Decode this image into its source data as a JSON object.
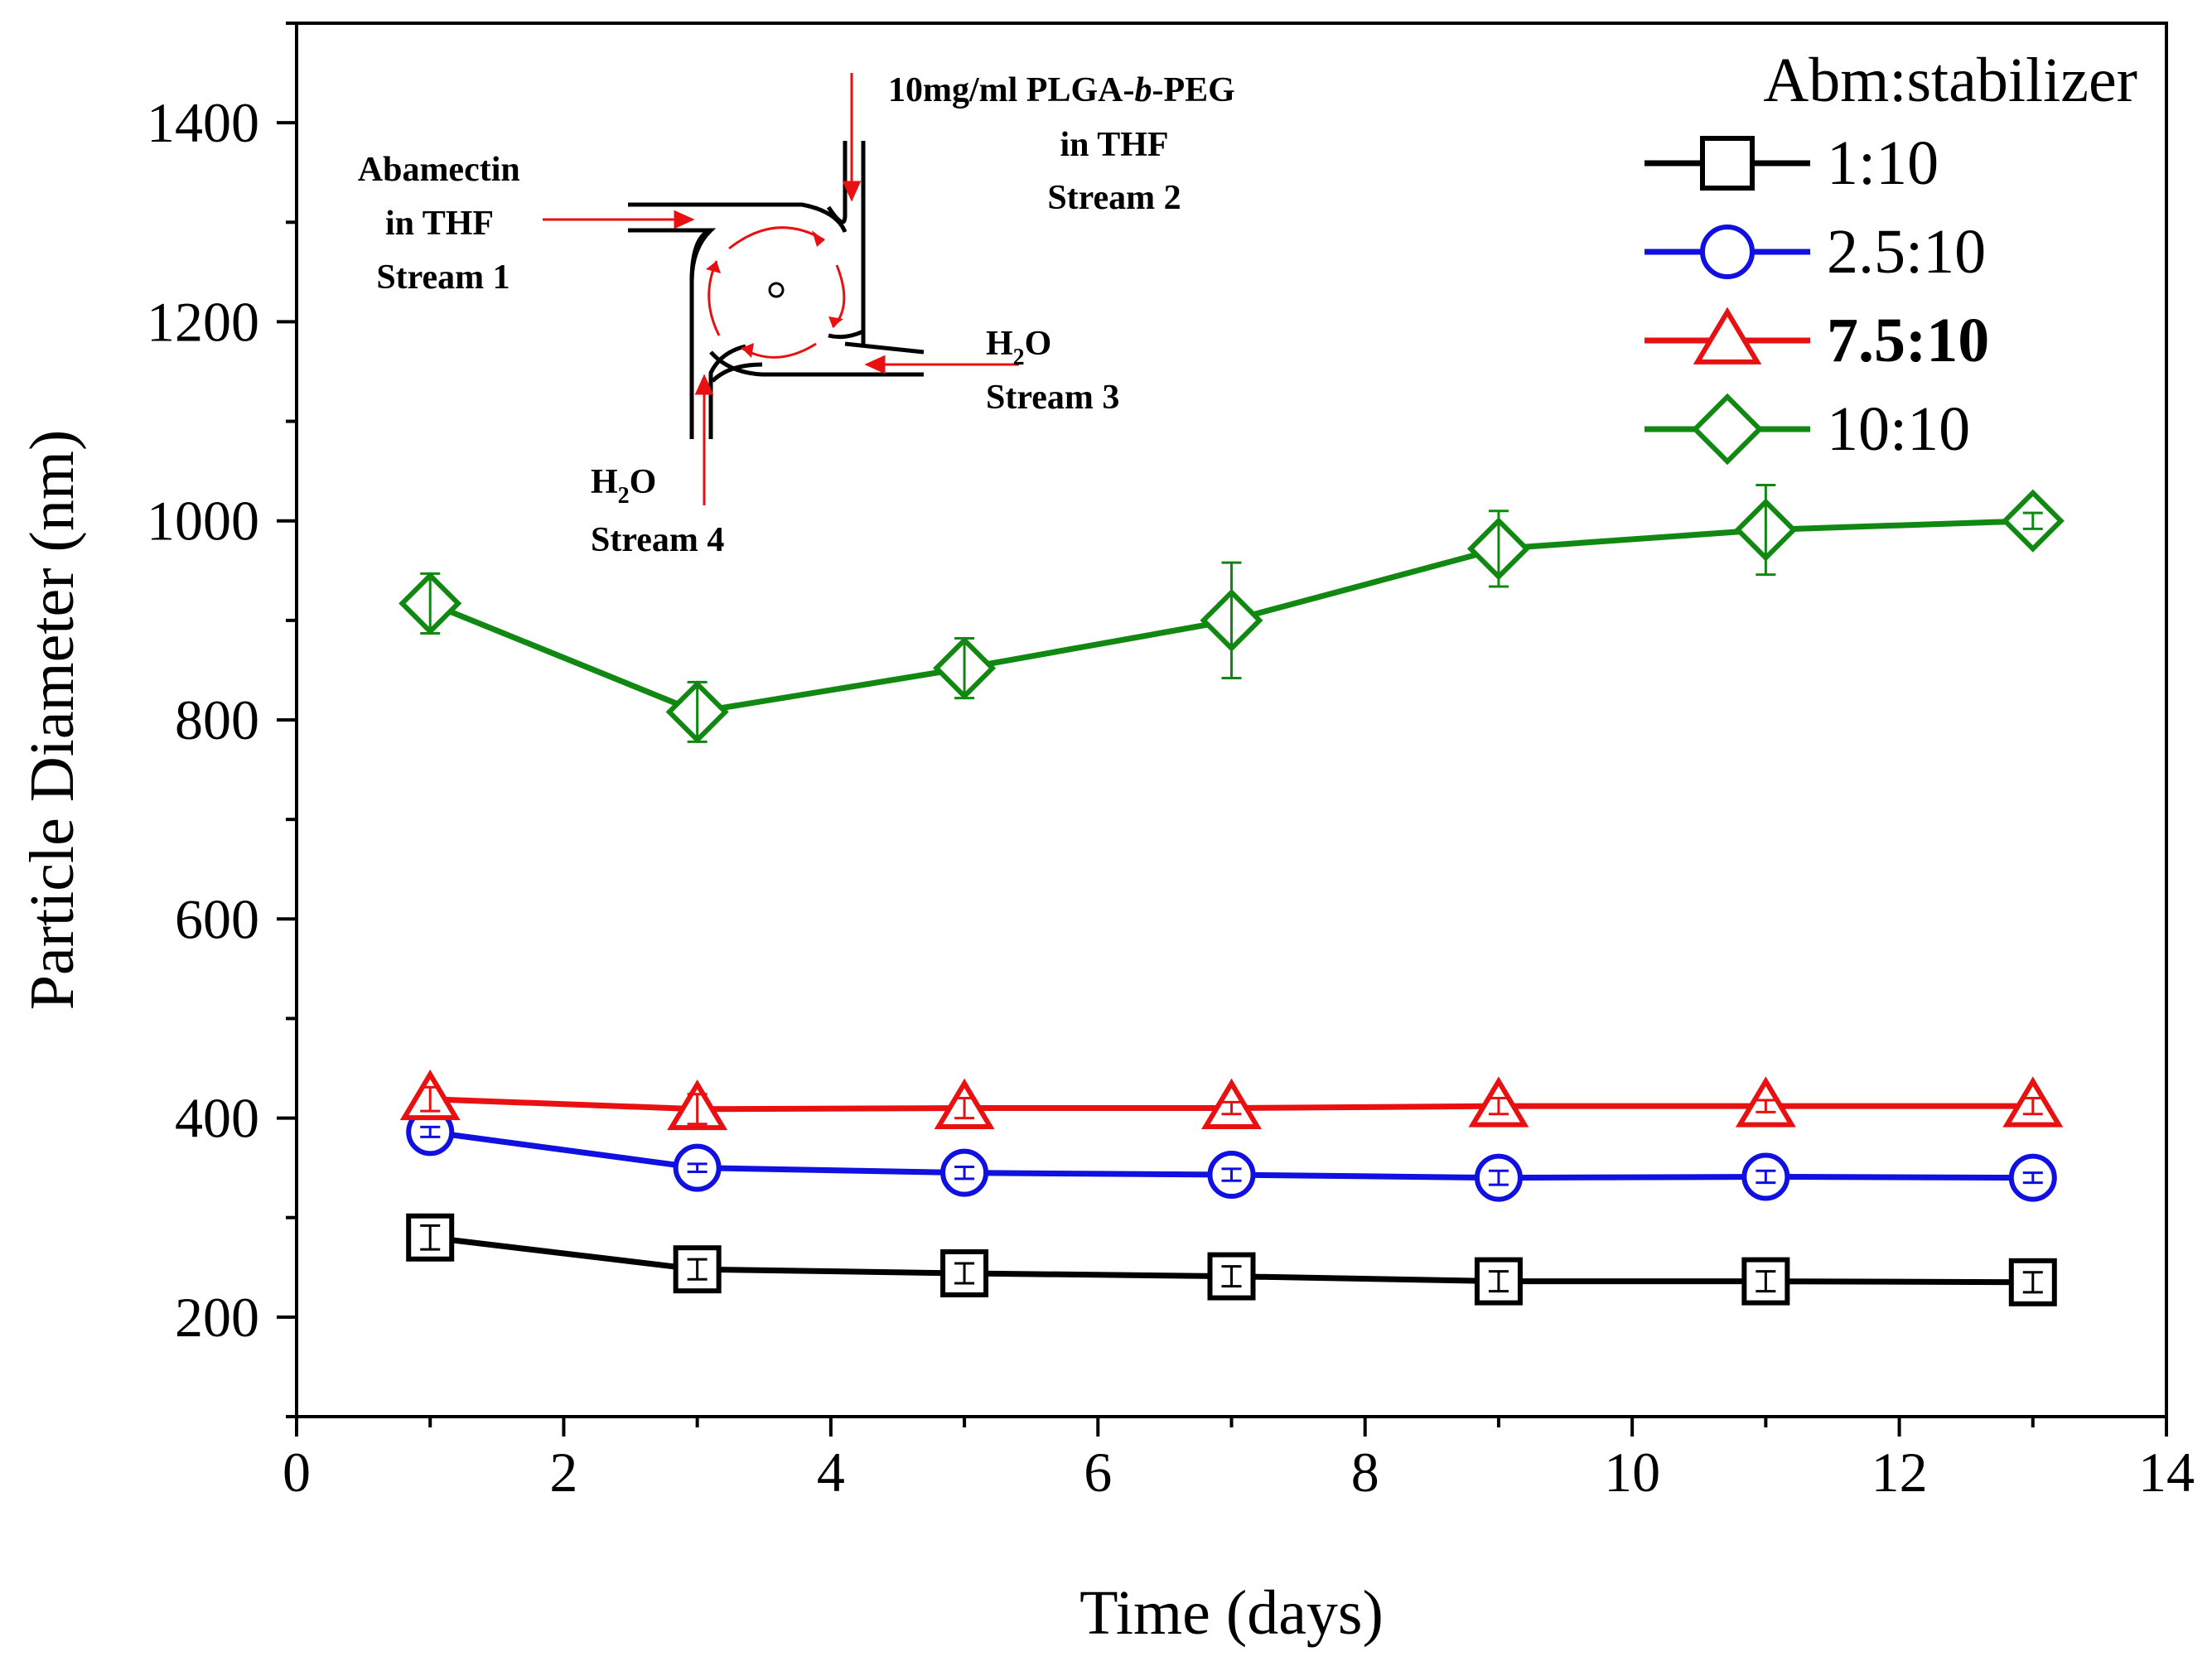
{
  "chart_data": {
    "type": "line",
    "title": "",
    "xlabel": "Time (days)",
    "ylabel": "Particle Diameter (nm)",
    "xlim": [
      0,
      14
    ],
    "ylim": [
      100,
      1500
    ],
    "x_ticks": [
      0,
      2,
      4,
      6,
      8,
      10,
      12,
      14
    ],
    "x_tick_labels": [
      "0",
      "2",
      "4",
      "6",
      "8",
      "10",
      "12",
      "14"
    ],
    "y_ticks": [
      200,
      400,
      600,
      800,
      1000,
      1200,
      1400
    ],
    "y_tick_labels": [
      "200",
      "400",
      "600",
      "800",
      "1000",
      "1200",
      "1400"
    ],
    "x": [
      1,
      3,
      5,
      7,
      9,
      11,
      13
    ],
    "legend_title": "Abm:stabilizer",
    "legend_position": "top-right",
    "grid": false,
    "series": [
      {
        "name": "1:10",
        "marker": "square",
        "color": "#000000",
        "bold": false,
        "values": [
          280,
          248,
          244,
          241,
          236,
          236,
          235
        ],
        "errors": [
          12,
          10,
          10,
          10,
          10,
          10,
          10
        ]
      },
      {
        "name": "2.5:10",
        "marker": "circle",
        "color": "#1010e0",
        "bold": false,
        "values": [
          386,
          350,
          345,
          343,
          340,
          341,
          340
        ],
        "errors": [
          5,
          4,
          6,
          6,
          7,
          6,
          5
        ]
      },
      {
        "name": "7.5:10",
        "marker": "triangle",
        "color": "#e81010",
        "bold": true,
        "values": [
          419,
          409,
          410,
          410,
          412,
          412,
          412
        ],
        "errors": [
          12,
          15,
          10,
          6,
          8,
          6,
          8
        ]
      },
      {
        "name": "10:10",
        "marker": "diamond",
        "color": "#118811",
        "bold": false,
        "values": [
          917,
          808,
          852,
          900,
          972,
          991,
          1000
        ],
        "errors": [
          30,
          30,
          30,
          58,
          38,
          45,
          8
        ]
      }
    ]
  },
  "inset": {
    "stream1": [
      "Abamectin",
      "in THF",
      "Stream 1"
    ],
    "stream2_line1_prefix": "10mg/ml PLGA-",
    "stream2_line1_italic": "b",
    "stream2_line1_suffix": "-PEG",
    "stream2_line2": "in THF",
    "stream2_line3": "Stream 2",
    "stream3_formula_h": "H",
    "stream3_formula_sub": "2",
    "stream3_formula_o": "O",
    "stream3_label": "Stream 3",
    "stream4_formula_h": "H",
    "stream4_formula_sub": "2",
    "stream4_formula_o": "O",
    "stream4_label": "Stream 4",
    "arrow_color": "#e81010"
  }
}
